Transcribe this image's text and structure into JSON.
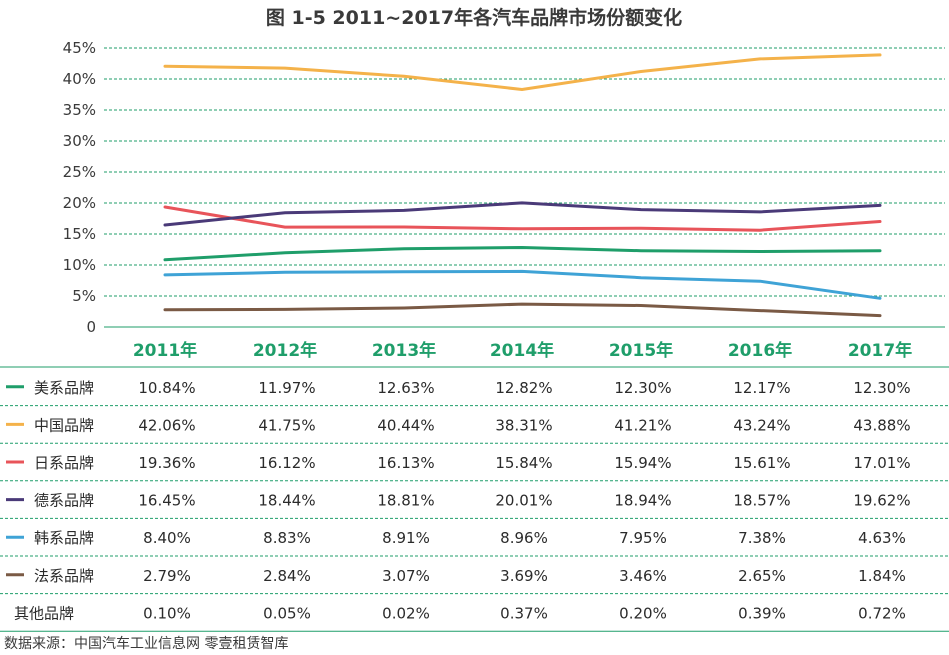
{
  "chart_data": {
    "type": "line",
    "title": "图 1-5  2011~2017年各汽车品牌市场份额变化",
    "categories": [
      "2011年",
      "2012年",
      "2013年",
      "2014年",
      "2015年",
      "2016年",
      "2017年"
    ],
    "y_ticks": [
      "0",
      "5%",
      "10%",
      "15%",
      "20%",
      "25%",
      "30%",
      "35%",
      "40%",
      "45%"
    ],
    "ylim": [
      0,
      45
    ],
    "grid": "horizontal dashed",
    "series": [
      {
        "name": "美系品牌",
        "color": "#1f9e6a",
        "values": [
          10.84,
          11.97,
          12.63,
          12.82,
          12.3,
          12.17,
          12.3
        ],
        "labels": [
          "10.84%",
          "11.97%",
          "12.63%",
          "12.82%",
          "12.30%",
          "12.17%",
          "12.30%"
        ],
        "plotted": true
      },
      {
        "name": "中国品牌",
        "color": "#f4b24a",
        "values": [
          42.06,
          41.75,
          40.44,
          38.31,
          41.21,
          43.24,
          43.88
        ],
        "labels": [
          "42.06%",
          "41.75%",
          "40.44%",
          "38.31%",
          "41.21%",
          "43.24%",
          "43.88%"
        ],
        "plotted": true
      },
      {
        "name": "日系品牌",
        "color": "#e8545a",
        "values": [
          19.36,
          16.12,
          16.13,
          15.84,
          15.94,
          15.61,
          17.01
        ],
        "labels": [
          "19.36%",
          "16.12%",
          "16.13%",
          "15.84%",
          "15.94%",
          "15.61%",
          "17.01%"
        ],
        "plotted": true
      },
      {
        "name": "德系品牌",
        "color": "#4a3a78",
        "values": [
          16.45,
          18.44,
          18.81,
          20.01,
          18.94,
          18.57,
          19.62
        ],
        "labels": [
          "16.45%",
          "18.44%",
          "18.81%",
          "20.01%",
          "18.94%",
          "18.57%",
          "19.62%"
        ],
        "plotted": true
      },
      {
        "name": "韩系品牌",
        "color": "#3fa3d6",
        "values": [
          8.4,
          8.83,
          8.91,
          8.96,
          7.95,
          7.38,
          4.63
        ],
        "labels": [
          "8.40%",
          "8.83%",
          "8.91%",
          "8.96%",
          "7.95%",
          "7.38%",
          "4.63%"
        ],
        "plotted": true
      },
      {
        "name": "法系品牌",
        "color": "#7a5a45",
        "values": [
          2.79,
          2.84,
          3.07,
          3.69,
          3.46,
          2.65,
          1.84
        ],
        "labels": [
          "2.79%",
          "2.84%",
          "3.07%",
          "3.69%",
          "3.46%",
          "2.65%",
          "1.84%"
        ],
        "plotted": true
      },
      {
        "name": "其他品牌",
        "color": "",
        "values": [
          0.1,
          0.05,
          0.02,
          0.37,
          0.2,
          0.39,
          0.72
        ],
        "labels": [
          "0.10%",
          "0.05%",
          "0.02%",
          "0.37%",
          "0.20%",
          "0.39%",
          "0.72%"
        ],
        "plotted": false
      }
    ],
    "source": "数据来源：中国汽车工业信息网   零壹租赁智库"
  }
}
